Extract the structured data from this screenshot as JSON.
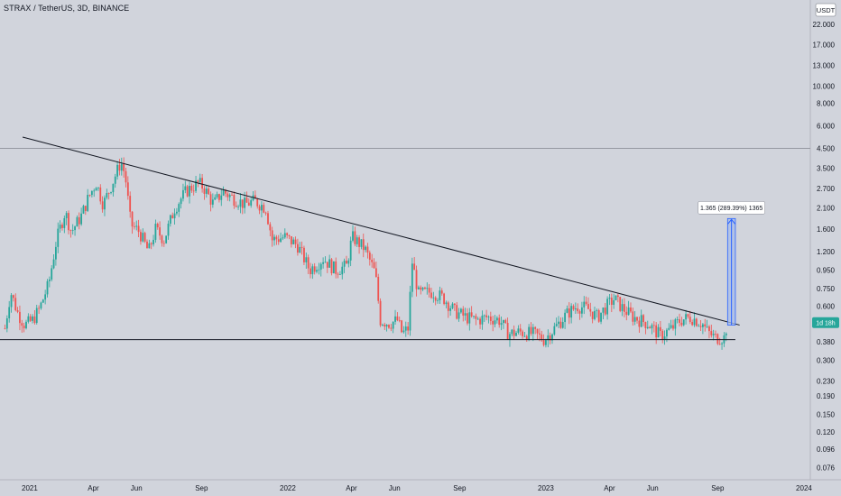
{
  "header": {
    "symbol_title": "STRAX / TetherUS, 3D, BINANCE"
  },
  "colors": {
    "background": "#d1d4dc",
    "up": "#26a69a",
    "down": "#ef5350",
    "trendline": "#131722",
    "projection_fill": "#a8bde8",
    "projection_border": "#2962ff",
    "last_price_label": "#26a69a"
  },
  "chart_data": {
    "type": "candlestick",
    "y_scale": "log",
    "ylim": [
      0.065,
      30
    ],
    "currency_label": "USDT",
    "y_ticks": [
      {
        "value": 22,
        "label": "22.000"
      },
      {
        "value": 17,
        "label": "17.000"
      },
      {
        "value": 13,
        "label": "13.000"
      },
      {
        "value": 10,
        "label": "10.000"
      },
      {
        "value": 8,
        "label": "8.000"
      },
      {
        "value": 6,
        "label": "6.000"
      },
      {
        "value": 4.5,
        "label": "4.500"
      },
      {
        "value": 3.5,
        "label": "3.500"
      },
      {
        "value": 2.7,
        "label": "2.700"
      },
      {
        "value": 2.1,
        "label": "2.100"
      },
      {
        "value": 1.6,
        "label": "1.600"
      },
      {
        "value": 1.2,
        "label": "1.200"
      },
      {
        "value": 0.95,
        "label": "0.950"
      },
      {
        "value": 0.75,
        "label": "0.750"
      },
      {
        "value": 0.6,
        "label": "0.600"
      },
      {
        "value": 0.38,
        "label": "0.380"
      },
      {
        "value": 0.3,
        "label": "0.300"
      },
      {
        "value": 0.23,
        "label": "0.230"
      },
      {
        "value": 0.19,
        "label": "0.190"
      },
      {
        "value": 0.15,
        "label": "0.150"
      },
      {
        "value": 0.12,
        "label": "0.120"
      },
      {
        "value": 0.096,
        "label": "0.096"
      },
      {
        "value": 0.076,
        "label": "0.076"
      }
    ],
    "x_range": [
      "2020-11-20",
      "2024-01-10"
    ],
    "x_ticks": [
      {
        "date": "2021-01-01",
        "label": "2021"
      },
      {
        "date": "2021-04-01",
        "label": "Apr"
      },
      {
        "date": "2021-06-01",
        "label": "Jun"
      },
      {
        "date": "2021-09-01",
        "label": "Sep"
      },
      {
        "date": "2022-01-01",
        "label": "2022"
      },
      {
        "date": "2022-04-01",
        "label": "Apr"
      },
      {
        "date": "2022-06-01",
        "label": "Jun"
      },
      {
        "date": "2022-09-01",
        "label": "Sep"
      },
      {
        "date": "2023-01-01",
        "label": "2023"
      },
      {
        "date": "2023-04-01",
        "label": "Apr"
      },
      {
        "date": "2023-06-01",
        "label": "Jun"
      },
      {
        "date": "2023-09-01",
        "label": "Sep"
      },
      {
        "date": "2024-01-01",
        "label": "2024"
      }
    ],
    "series": [
      {
        "price_points": [
          [
            "2020-11-27",
            0.45
          ],
          [
            "2020-12-05",
            0.72
          ],
          [
            "2020-12-15",
            0.55
          ],
          [
            "2020-12-25",
            0.47
          ],
          [
            "2021-01-05",
            0.5
          ],
          [
            "2021-01-15",
            0.58
          ],
          [
            "2021-01-28",
            0.8
          ],
          [
            "2021-02-08",
            1.4
          ],
          [
            "2021-02-20",
            2.0
          ],
          [
            "2021-03-01",
            1.55
          ],
          [
            "2021-03-15",
            1.9
          ],
          [
            "2021-03-25",
            2.4
          ],
          [
            "2021-04-05",
            2.9
          ],
          [
            "2021-04-15",
            2.2
          ],
          [
            "2021-04-28",
            2.9
          ],
          [
            "2021-05-10",
            3.8
          ],
          [
            "2021-05-16",
            3.2
          ],
          [
            "2021-05-24",
            1.7
          ],
          [
            "2021-06-05",
            1.55
          ],
          [
            "2021-06-18",
            1.2
          ],
          [
            "2021-06-28",
            1.6
          ],
          [
            "2021-07-10",
            1.4
          ],
          [
            "2021-07-25",
            2.1
          ],
          [
            "2021-08-10",
            2.6
          ],
          [
            "2021-08-28",
            2.9
          ],
          [
            "2021-09-05",
            2.7
          ],
          [
            "2021-09-18",
            2.2
          ],
          [
            "2021-10-01",
            2.6
          ],
          [
            "2021-10-15",
            2.4
          ],
          [
            "2021-11-01",
            2.2
          ],
          [
            "2021-11-15",
            2.3
          ],
          [
            "2021-12-01",
            2.1
          ],
          [
            "2021-12-10",
            1.4
          ],
          [
            "2021-12-28",
            1.45
          ],
          [
            "2022-01-15",
            1.3
          ],
          [
            "2022-02-01",
            0.95
          ],
          [
            "2022-02-20",
            1.1
          ],
          [
            "2022-03-10",
            0.95
          ],
          [
            "2022-03-25",
            1.0
          ],
          [
            "2022-04-02",
            1.45
          ],
          [
            "2022-04-20",
            1.25
          ],
          [
            "2022-05-05",
            0.9
          ],
          [
            "2022-05-12",
            0.5
          ],
          [
            "2022-05-25",
            0.48
          ],
          [
            "2022-06-05",
            0.5
          ],
          [
            "2022-06-12",
            0.42
          ],
          [
            "2022-06-20",
            0.45
          ],
          [
            "2022-06-26",
            1.05
          ],
          [
            "2022-07-05",
            0.7
          ],
          [
            "2022-07-25",
            0.72
          ],
          [
            "2022-08-10",
            0.66
          ],
          [
            "2022-08-25",
            0.56
          ],
          [
            "2022-09-10",
            0.52
          ],
          [
            "2022-09-25",
            0.5
          ],
          [
            "2022-10-10",
            0.52
          ],
          [
            "2022-10-28",
            0.5
          ],
          [
            "2022-11-09",
            0.42
          ],
          [
            "2022-11-25",
            0.43
          ],
          [
            "2022-12-15",
            0.42
          ],
          [
            "2022-12-30",
            0.39
          ],
          [
            "2023-01-15",
            0.46
          ],
          [
            "2023-02-01",
            0.55
          ],
          [
            "2023-02-15",
            0.6
          ],
          [
            "2023-03-01",
            0.58
          ],
          [
            "2023-03-15",
            0.52
          ],
          [
            "2023-03-28",
            0.6
          ],
          [
            "2023-04-08",
            0.66
          ],
          [
            "2023-04-20",
            0.58
          ],
          [
            "2023-05-05",
            0.52
          ],
          [
            "2023-05-25",
            0.48
          ],
          [
            "2023-06-12",
            0.41
          ],
          [
            "2023-06-28",
            0.45
          ],
          [
            "2023-07-10",
            0.5
          ],
          [
            "2023-07-25",
            0.52
          ],
          [
            "2023-08-10",
            0.48
          ],
          [
            "2023-08-18",
            0.43
          ],
          [
            "2023-08-28",
            0.4
          ],
          [
            "2023-09-10",
            0.4
          ],
          [
            "2023-09-15",
            0.49
          ]
        ]
      }
    ],
    "horizontal_line_value": 4.5,
    "trendlines": [
      {
        "name": "descending-resistance",
        "from": [
          "2020-12-22",
          5.2
        ],
        "to": [
          "2023-10-02",
          0.47
        ]
      },
      {
        "name": "horizontal-support",
        "from": [
          "2020-11-08",
          0.39
        ],
        "to": [
          "2023-09-26",
          0.39
        ]
      }
    ],
    "projection": {
      "from_date": "2023-09-15",
      "to_date": "2023-09-26",
      "low": 0.47,
      "high": 1.835,
      "label": "1.365 (289.39%) 1365"
    },
    "last_price_label": "1d 18h",
    "last_price_value": 0.485
  }
}
